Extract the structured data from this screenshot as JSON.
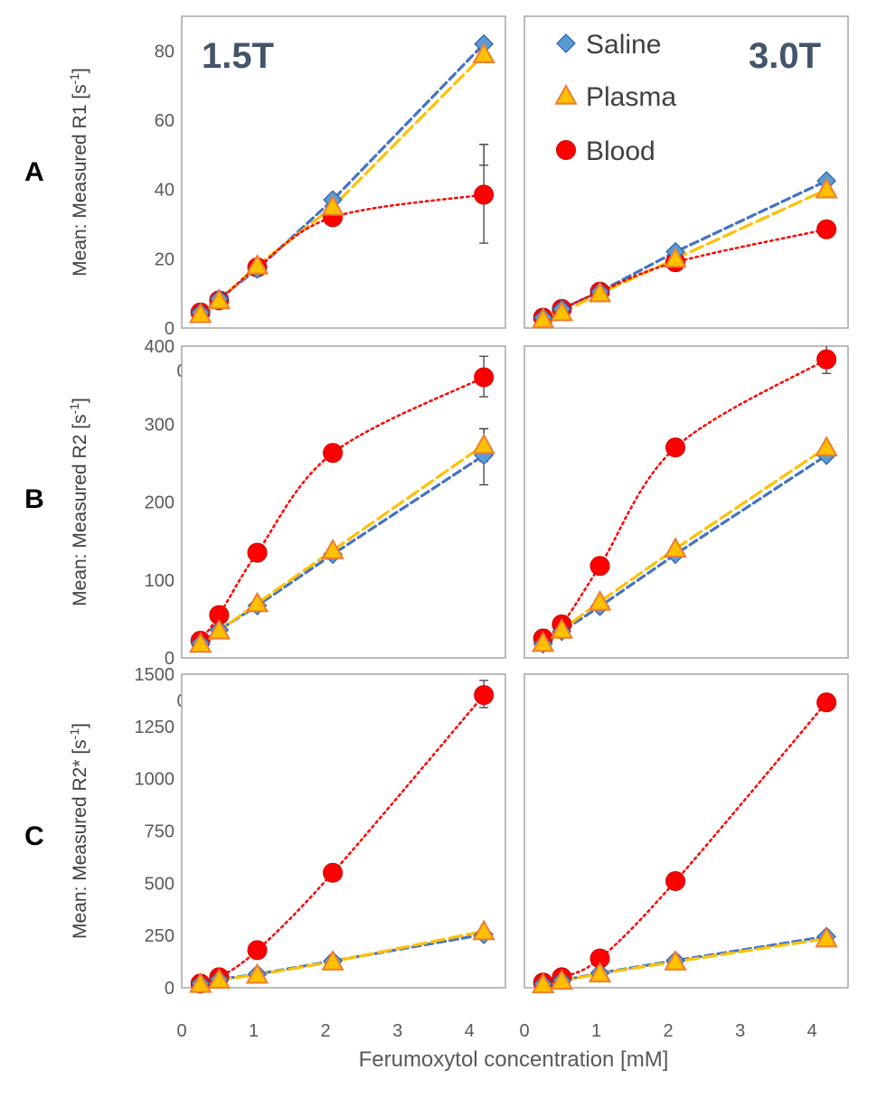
{
  "figure": {
    "row_labels": [
      "A",
      "B",
      "C"
    ],
    "x_axis_label": "Ferumoxytol concentration [mM]",
    "legend": [
      {
        "label": "Saline",
        "color": "#5b9bd5",
        "marker": "diamond"
      },
      {
        "label": "Plasma",
        "color": "#ffc000",
        "marker": "triangle"
      },
      {
        "label": "Blood",
        "color": "#ff0000",
        "marker": "circle"
      }
    ]
  },
  "chart_data": [
    {
      "type": "scatter",
      "row": "A",
      "panel_label": "1.5T",
      "ylabel": "Mean: Measured R1 [s",
      "ylabel_sup": "-1",
      "ylabel_tail": "]",
      "xlim": [
        0,
        4.5
      ],
      "ylim": [
        0,
        90
      ],
      "xticks": [
        0,
        1,
        2,
        3,
        4
      ],
      "yticks": [
        0,
        20,
        40,
        60,
        80
      ],
      "series": [
        {
          "name": "Saline",
          "x": [
            0.26,
            0.52,
            1.05,
            2.1,
            4.2
          ],
          "y": [
            4.5,
            8.5,
            17,
            37,
            82
          ]
        },
        {
          "name": "Plasma",
          "x": [
            0.26,
            0.52,
            1.05,
            2.1,
            4.2
          ],
          "y": [
            4,
            8,
            18,
            35,
            79
          ]
        },
        {
          "name": "Blood",
          "x": [
            0.26,
            0.52,
            1.05,
            2.1,
            4.2
          ],
          "y": [
            4.5,
            8,
            17.5,
            32,
            38.5
          ],
          "error": [
            [
              4.2,
              24.5,
              53
            ],
            [
              4.2,
              47,
              53
            ]
          ]
        }
      ]
    },
    {
      "type": "scatter",
      "row": "A",
      "panel_label": "3.0T",
      "xlim": [
        0,
        4.5
      ],
      "ylim": [
        0,
        90
      ],
      "xticks": [],
      "yticks": [],
      "series": [
        {
          "name": "Saline",
          "x": [
            0.26,
            0.52,
            1.05,
            2.1,
            4.2
          ],
          "y": [
            3,
            5.5,
            10.5,
            22,
            42.5
          ]
        },
        {
          "name": "Plasma",
          "x": [
            0.26,
            0.52,
            1.05,
            2.1,
            4.2
          ],
          "y": [
            2.5,
            4.5,
            10,
            20,
            40
          ]
        },
        {
          "name": "Blood",
          "x": [
            0.26,
            0.52,
            1.05,
            2.1,
            4.2
          ],
          "y": [
            3,
            5.5,
            10.5,
            19,
            28.5
          ]
        }
      ]
    },
    {
      "type": "scatter",
      "row": "B",
      "ylabel": "Mean: Measured R2 [s",
      "ylabel_sup": "-1",
      "ylabel_tail": "]",
      "xlim": [
        0,
        4.5
      ],
      "ylim": [
        0,
        400
      ],
      "xticks": [
        0,
        1,
        2,
        3,
        4
      ],
      "yticks": [
        0,
        100,
        200,
        300,
        400
      ],
      "series": [
        {
          "name": "Saline",
          "x": [
            0.26,
            0.52,
            1.05,
            2.1,
            4.2
          ],
          "y": [
            19,
            36,
            67,
            133,
            260
          ],
          "error": [
            [
              4.2,
              222,
              294
            ]
          ]
        },
        {
          "name": "Plasma",
          "x": [
            0.26,
            0.52,
            1.05,
            2.1,
            4.2
          ],
          "y": [
            18,
            35,
            70,
            138,
            273
          ],
          "error": [
            [
              4.2,
              252,
              294
            ]
          ]
        },
        {
          "name": "Blood",
          "x": [
            0.26,
            0.52,
            1.05,
            2.1,
            4.2
          ],
          "y": [
            22,
            55,
            135,
            263,
            360
          ],
          "error": [
            [
              4.2,
              335,
              387
            ]
          ]
        }
      ]
    },
    {
      "type": "scatter",
      "row": "B",
      "xlim": [
        0,
        4.5
      ],
      "ylim": [
        0,
        400
      ],
      "xticks": [],
      "yticks": [],
      "series": [
        {
          "name": "Saline",
          "x": [
            0.26,
            0.52,
            1.05,
            2.1,
            4.2
          ],
          "y": [
            18,
            34,
            66,
            133,
            260
          ]
        },
        {
          "name": "Plasma",
          "x": [
            0.26,
            0.52,
            1.05,
            2.1,
            4.2
          ],
          "y": [
            19,
            36,
            72,
            140,
            270
          ]
        },
        {
          "name": "Blood",
          "x": [
            0.26,
            0.52,
            1.05,
            2.1,
            4.2
          ],
          "y": [
            25,
            43,
            118,
            270,
            383
          ],
          "error": [
            [
              4.2,
              365,
              402
            ]
          ]
        }
      ]
    },
    {
      "type": "scatter",
      "row": "C",
      "ylabel": "Mean: Measured R2* [s",
      "ylabel_sup": "-1",
      "ylabel_tail": "]",
      "xlim": [
        0,
        4.5
      ],
      "ylim": [
        0,
        1500
      ],
      "xticks": [
        0,
        1,
        2,
        3,
        4
      ],
      "yticks": [
        0,
        250,
        500,
        750,
        1000,
        1250,
        1500
      ],
      "series": [
        {
          "name": "Saline",
          "x": [
            0.26,
            0.52,
            1.05,
            2.1,
            4.2
          ],
          "y": [
            20,
            40,
            65,
            128,
            255
          ]
        },
        {
          "name": "Plasma",
          "x": [
            0.26,
            0.52,
            1.05,
            2.1,
            4.2
          ],
          "y": [
            18,
            38,
            62,
            125,
            270
          ]
        },
        {
          "name": "Blood",
          "x": [
            0.26,
            0.52,
            1.05,
            2.1,
            4.2
          ],
          "y": [
            20,
            50,
            180,
            550,
            1400
          ],
          "error": [
            [
              4.2,
              1340,
              1470
            ]
          ]
        }
      ]
    },
    {
      "type": "scatter",
      "row": "C",
      "xlim": [
        0,
        4.5
      ],
      "ylim": [
        0,
        1500
      ],
      "xticks": [
        0,
        1,
        2,
        3,
        4
      ],
      "yticks": [],
      "series": [
        {
          "name": "Saline",
          "x": [
            0.26,
            0.52,
            1.05,
            2.1,
            4.2
          ],
          "y": [
            18,
            35,
            70,
            130,
            245
          ]
        },
        {
          "name": "Plasma",
          "x": [
            0.26,
            0.52,
            1.05,
            2.1,
            4.2
          ],
          "y": [
            16,
            33,
            68,
            125,
            235
          ]
        },
        {
          "name": "Blood",
          "x": [
            0.26,
            0.52,
            1.05,
            2.1,
            4.2
          ],
          "y": [
            25,
            50,
            140,
            510,
            1365
          ]
        }
      ]
    }
  ]
}
